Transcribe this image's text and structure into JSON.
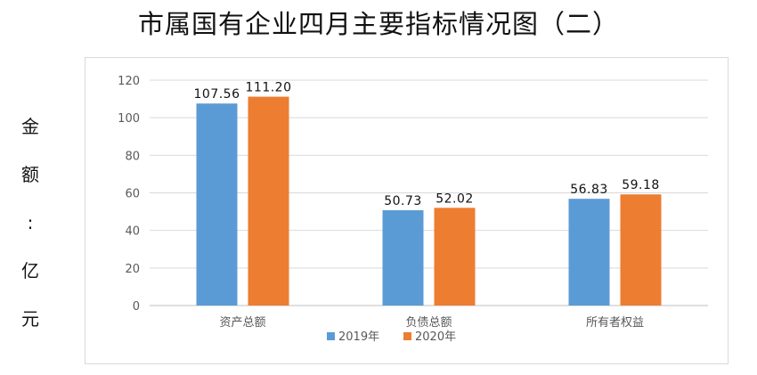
{
  "chart_data": {
    "type": "bar",
    "title": "市属国有企业四月主要指标情况图（二）",
    "ylabel": [
      "金",
      "额",
      ":",
      "亿",
      "元"
    ],
    "categories": [
      "资产总额",
      "负债总额",
      "所有者权益"
    ],
    "series": [
      {
        "name": "2019年",
        "color": "#5b9bd5",
        "values": [
          107.56,
          50.73,
          56.83
        ]
      },
      {
        "name": "2020年",
        "color": "#ed7d31",
        "values": [
          111.2,
          52.02,
          59.18
        ]
      }
    ],
    "data_labels": [
      [
        "107.56",
        "50.73",
        "56.83"
      ],
      [
        "111.20",
        "52.02",
        "59.18"
      ]
    ],
    "ylim": [
      0,
      120
    ],
    "yticks": [
      "0",
      "20",
      "40",
      "60",
      "80",
      "100",
      "120"
    ],
    "grid": true,
    "legend": "bottom"
  }
}
